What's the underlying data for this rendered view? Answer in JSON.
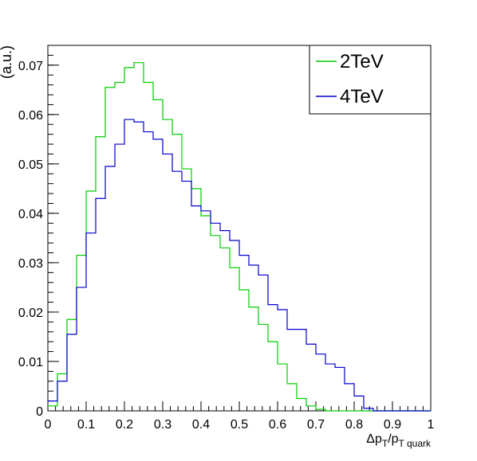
{
  "chart_data": {
    "type": "step",
    "ylabel": "(a.u.)",
    "xlabel": {
      "main": "Δp",
      "sub1": "T",
      "mid": "/p",
      "sub2": "T quark"
    },
    "xlim": [
      0,
      1
    ],
    "ylim": [
      0,
      0.074
    ],
    "x_ticks": [
      {
        "value": 0,
        "label": "0"
      },
      {
        "value": 0.1,
        "label": "0.1"
      },
      {
        "value": 0.2,
        "label": "0.2"
      },
      {
        "value": 0.3,
        "label": "0.3"
      },
      {
        "value": 0.4,
        "label": "0.4"
      },
      {
        "value": 0.5,
        "label": "0.5"
      },
      {
        "value": 0.6,
        "label": "0.6"
      },
      {
        "value": 0.7,
        "label": "0.7"
      },
      {
        "value": 0.8,
        "label": "0.8"
      },
      {
        "value": 0.9,
        "label": "0.9"
      },
      {
        "value": 1,
        "label": "1"
      }
    ],
    "y_ticks": [
      {
        "value": 0,
        "label": "0"
      },
      {
        "value": 0.01,
        "label": "0.01"
      },
      {
        "value": 0.02,
        "label": "0.02"
      },
      {
        "value": 0.03,
        "label": "0.03"
      },
      {
        "value": 0.04,
        "label": "0.04"
      },
      {
        "value": 0.05,
        "label": "0.05"
      },
      {
        "value": 0.06,
        "label": "0.06"
      },
      {
        "value": 0.07,
        "label": "0.07"
      }
    ],
    "x_bins": [
      0,
      0.025,
      0.05,
      0.075,
      0.1,
      0.125,
      0.15,
      0.175,
      0.2,
      0.225,
      0.25,
      0.275,
      0.3,
      0.325,
      0.35,
      0.375,
      0.4,
      0.425,
      0.45,
      0.475,
      0.5,
      0.525,
      0.55,
      0.575,
      0.6,
      0.625,
      0.65,
      0.675,
      0.7,
      0.725,
      0.75,
      0.775,
      0.8,
      0.825,
      0.85,
      0.875,
      0.9,
      0.925,
      0.95,
      0.975,
      1.0
    ],
    "legend_position": "top-right",
    "series": [
      {
        "name": "2TeV",
        "color": "#00cc00",
        "values": [
          0.001,
          0.0075,
          0.0185,
          0.0315,
          0.0445,
          0.0555,
          0.0655,
          0.0665,
          0.0695,
          0.0705,
          0.0665,
          0.063,
          0.059,
          0.056,
          0.049,
          0.045,
          0.0395,
          0.0355,
          0.033,
          0.029,
          0.0245,
          0.021,
          0.0175,
          0.014,
          0.0095,
          0.0055,
          0.0025,
          0.001,
          0.0003,
          0,
          0,
          0,
          0,
          0,
          0,
          0,
          0,
          0,
          0,
          0
        ]
      },
      {
        "name": "4TeV",
        "color": "#0000cc",
        "values": [
          0.002,
          0.006,
          0.0155,
          0.025,
          0.036,
          0.043,
          0.0495,
          0.054,
          0.059,
          0.0585,
          0.0565,
          0.055,
          0.052,
          0.0485,
          0.0465,
          0.0415,
          0.0405,
          0.038,
          0.0365,
          0.0345,
          0.0315,
          0.0295,
          0.0275,
          0.0215,
          0.0205,
          0.0165,
          0.0165,
          0.0135,
          0.0115,
          0.0095,
          0.0088,
          0.0055,
          0.003,
          0.0005,
          0,
          0,
          0,
          0,
          0,
          0
        ]
      }
    ]
  }
}
